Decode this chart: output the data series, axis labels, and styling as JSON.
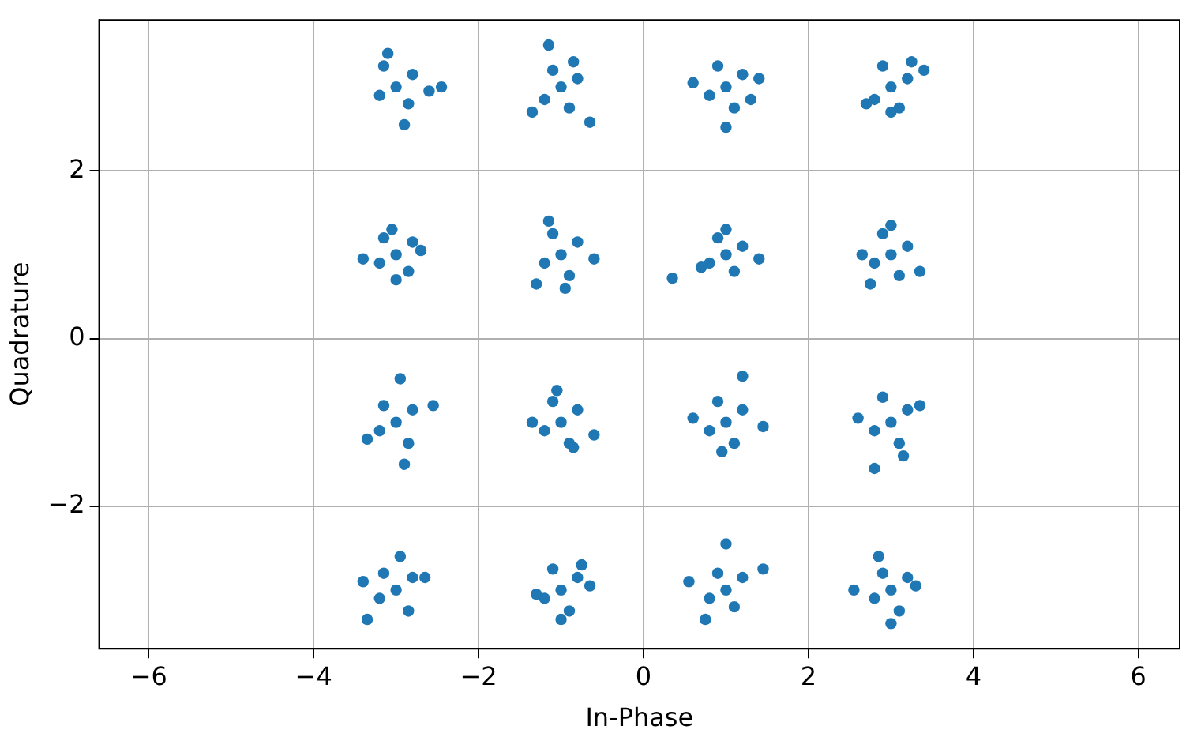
{
  "chart_data": {
    "type": "scatter",
    "xlabel": "In-Phase",
    "ylabel": "Quadrature",
    "xlim": [
      -6.6,
      6.5
    ],
    "ylim": [
      -3.7,
      3.8
    ],
    "xticks": [
      -6,
      -4,
      -2,
      0,
      2,
      4,
      6
    ],
    "yticks": [
      -2,
      0,
      2
    ],
    "grid": true,
    "legend": false,
    "marker": "circle",
    "series": [
      {
        "color": "#1f77b4",
        "x": [
          -3,
          -2.8,
          -3.2,
          -2.85,
          -3.15,
          -2.6,
          -2.45,
          -2.9,
          -3.1,
          -1,
          -0.8,
          -1.2,
          -0.9,
          -1.1,
          -0.65,
          -1.15,
          -1.35,
          -0.85,
          1,
          1.2,
          0.8,
          1.1,
          0.9,
          1.4,
          0.6,
          1.0,
          1.3,
          3,
          3.2,
          2.8,
          3.1,
          2.9,
          3.4,
          2.7,
          3.0,
          3.25,
          -3,
          -2.8,
          -3.2,
          -2.85,
          -3.15,
          -3.4,
          -2.7,
          -3.0,
          -3.05,
          -1,
          -0.8,
          -1.2,
          -0.9,
          -1.1,
          -1.3,
          -0.6,
          -0.95,
          -1.15,
          1,
          1.2,
          0.8,
          1.1,
          0.9,
          1.4,
          0.35,
          1.0,
          0.7,
          3,
          3.2,
          2.8,
          3.1,
          2.9,
          3.35,
          2.65,
          3.0,
          2.75,
          -3,
          -2.8,
          -3.2,
          -2.85,
          -3.15,
          -2.55,
          -3.35,
          -2.95,
          -2.9,
          -1,
          -0.8,
          -1.2,
          -0.9,
          -1.1,
          -0.6,
          -1.35,
          -1.05,
          -0.85,
          1,
          1.2,
          0.8,
          1.1,
          0.9,
          1.45,
          0.6,
          1.2,
          0.95,
          3,
          3.2,
          2.8,
          3.1,
          2.9,
          3.35,
          2.6,
          2.8,
          3.15,
          -3,
          -2.8,
          -3.2,
          -2.85,
          -3.15,
          -3.35,
          -3.4,
          -2.95,
          -2.65,
          -1,
          -0.8,
          -1.2,
          -0.9,
          -1.1,
          -0.65,
          -1.3,
          -1.0,
          -0.75,
          1,
          1.2,
          0.8,
          1.1,
          0.9,
          1.45,
          0.55,
          0.75,
          1.0,
          3,
          3.2,
          2.8,
          3.1,
          2.9,
          3.3,
          2.55,
          2.85,
          3.0
        ],
        "values": [
          3,
          3.15,
          2.9,
          2.8,
          3.25,
          2.95,
          3.0,
          2.55,
          3.4,
          3,
          3.1,
          2.85,
          2.75,
          3.2,
          2.58,
          3.5,
          2.7,
          3.3,
          3,
          3.15,
          2.9,
          2.75,
          3.25,
          3.1,
          3.05,
          2.52,
          2.85,
          3,
          3.1,
          2.85,
          2.75,
          3.25,
          3.2,
          2.8,
          2.7,
          3.3,
          1,
          1.15,
          0.9,
          0.8,
          1.2,
          0.95,
          1.05,
          0.7,
          1.3,
          1,
          1.15,
          0.9,
          0.75,
          1.25,
          0.65,
          0.95,
          0.6,
          1.4,
          1,
          1.1,
          0.9,
          0.8,
          1.2,
          0.95,
          0.72,
          1.3,
          0.85,
          1,
          1.1,
          0.9,
          0.75,
          1.25,
          0.8,
          1.0,
          1.35,
          0.65,
          -1,
          -0.85,
          -1.1,
          -1.25,
          -0.8,
          -0.8,
          -1.2,
          -0.48,
          -1.5,
          -1,
          -0.85,
          -1.1,
          -1.25,
          -0.75,
          -1.15,
          -1.0,
          -0.62,
          -1.3,
          -1,
          -0.85,
          -1.1,
          -1.25,
          -0.75,
          -1.05,
          -0.95,
          -0.45,
          -1.35,
          -1,
          -0.85,
          -1.1,
          -1.25,
          -0.7,
          -0.8,
          -0.95,
          -1.55,
          -1.4,
          -3,
          -2.85,
          -3.1,
          -3.25,
          -2.8,
          -3.35,
          -2.9,
          -2.6,
          -2.85,
          -3,
          -2.85,
          -3.1,
          -3.25,
          -2.75,
          -2.95,
          -3.05,
          -3.35,
          -2.7,
          -3,
          -2.85,
          -3.1,
          -3.2,
          -2.8,
          -2.75,
          -2.9,
          -3.35,
          -2.45,
          -3,
          -2.85,
          -3.1,
          -3.25,
          -2.8,
          -2.95,
          -3.0,
          -2.6,
          -3.4
        ]
      }
    ]
  }
}
